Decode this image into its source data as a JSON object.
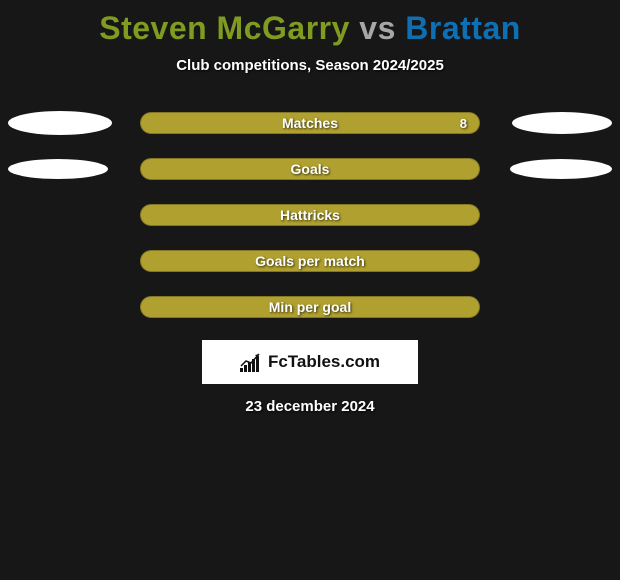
{
  "background_color": "#171717",
  "title": {
    "player1": "Steven McGarry",
    "vs": " vs ",
    "player2": "Brattan",
    "player1_color": "#7f9b20",
    "vs_color": "#a7a7a7",
    "player2_color": "#0f6fb3",
    "fontsize": 32
  },
  "subtitle": {
    "text": "Club competitions, Season 2024/2025",
    "color": "#ffffff",
    "fontsize": 15
  },
  "rows": [
    {
      "label": "Matches",
      "value_right": "8",
      "show_value": true,
      "pill_color": "#b0a02f",
      "ellipses": [
        {
          "side": "left",
          "width": 104,
          "height": 24
        },
        {
          "side": "right",
          "width": 100,
          "height": 22
        }
      ]
    },
    {
      "label": "Goals",
      "value_right": "",
      "show_value": false,
      "pill_color": "#b0a02f",
      "ellipses": [
        {
          "side": "left",
          "width": 100,
          "height": 20
        },
        {
          "side": "right",
          "width": 102,
          "height": 20
        }
      ]
    },
    {
      "label": "Hattricks",
      "value_right": "",
      "show_value": false,
      "pill_color": "#b0a02f",
      "ellipses": []
    },
    {
      "label": "Goals per match",
      "value_right": "",
      "show_value": false,
      "pill_color": "#b0a02f",
      "ellipses": []
    },
    {
      "label": "Min per goal",
      "value_right": "",
      "show_value": false,
      "pill_color": "#b0a02f",
      "ellipses": []
    }
  ],
  "logo": {
    "text": "FcTables.com",
    "text_color": "#111111",
    "box_bg": "#ffffff",
    "icon_bars": [
      4,
      7,
      10,
      13,
      16
    ],
    "icon_bar_color": "#111111",
    "icon_arrow_color": "#111111"
  },
  "date": {
    "text": "23 december 2024",
    "color": "#ffffff",
    "fontsize": 15
  }
}
